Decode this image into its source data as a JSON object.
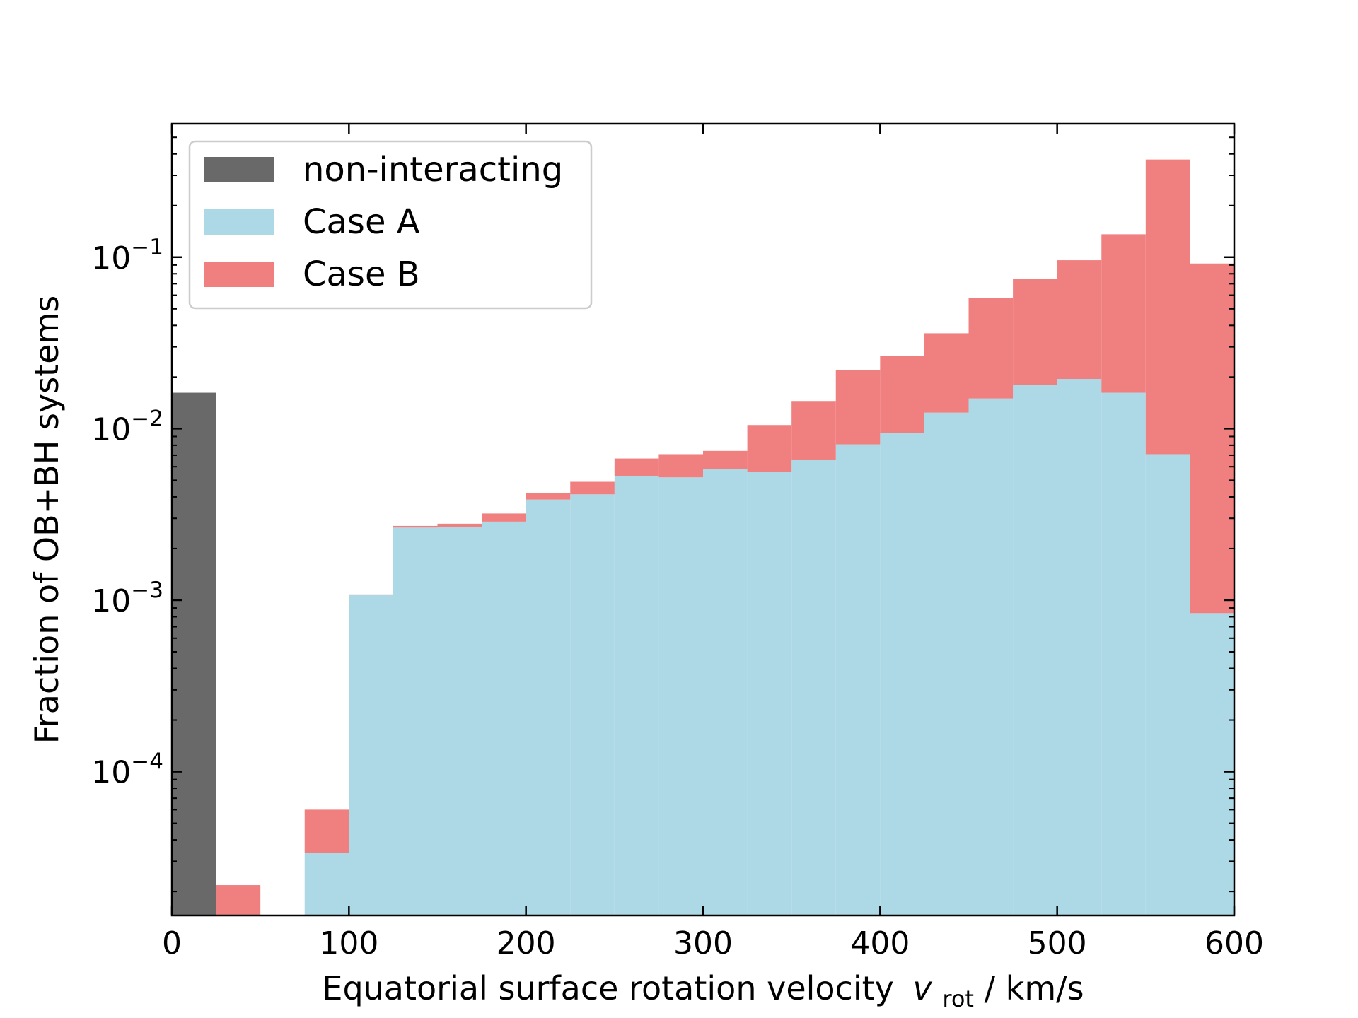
{
  "chart_data": {
    "type": "bar",
    "stacked": true,
    "xlabel": "Equatorial surface rotation velocity",
    "xlabel_symbol": "v",
    "xlabel_subscript": "rot",
    "xlabel_unit": " / km/s",
    "ylabel": "Fraction of OB+BH systems",
    "xlim": [
      0,
      600
    ],
    "ylim": [
      1.45e-05,
      0.6
    ],
    "yscale": "log",
    "x_ticks": [
      "0",
      "100",
      "200",
      "300",
      "400",
      "500",
      "600"
    ],
    "y_ticks": [
      {
        "base": "10",
        "exp": "−1",
        "value": 0.1
      },
      {
        "base": "10",
        "exp": "−2",
        "value": 0.01
      },
      {
        "base": "10",
        "exp": "−3",
        "value": 0.001
      },
      {
        "base": "10",
        "exp": "−4",
        "value": 0.0001
      }
    ],
    "bin_width": 25,
    "bins": [
      0,
      25,
      50,
      75,
      100,
      125,
      150,
      175,
      200,
      225,
      250,
      275,
      300,
      325,
      350,
      375,
      400,
      425,
      450,
      475,
      500,
      525,
      550,
      575
    ],
    "series": [
      {
        "name": "non-interacting",
        "color": "#696969",
        "values": [
          0.0162,
          0,
          0,
          0,
          0,
          0,
          0,
          0,
          0,
          0,
          0,
          0,
          0,
          0,
          0,
          0,
          0,
          0,
          0,
          0,
          0,
          0,
          0,
          0
        ]
      },
      {
        "name": "Case A",
        "color": "#add8e6",
        "values": [
          0,
          0,
          0,
          3.35e-05,
          0.00107,
          0.00265,
          0.00268,
          0.00287,
          0.00386,
          0.00414,
          0.0053,
          0.0052,
          0.00582,
          0.0056,
          0.0066,
          0.0081,
          0.0094,
          0.0124,
          0.015,
          0.018,
          0.0195,
          0.0162,
          0.0071,
          0.00084
        ]
      },
      {
        "name": "Case B",
        "color": "#f08080",
        "values": [
          0,
          2.18e-05,
          0,
          2.65e-05,
          1e-05,
          6e-05,
          0.00011,
          0.00033,
          0.00034,
          0.00076,
          0.0014,
          0.0019,
          0.0016,
          0.0049,
          0.0079,
          0.0139,
          0.0171,
          0.0236,
          0.0428,
          0.057,
          0.0765,
          0.1198,
          0.3639,
          0.091
        ]
      }
    ],
    "legend": {
      "position": "top-left",
      "entries": [
        "non-interacting",
        "Case A",
        "Case B"
      ]
    }
  }
}
